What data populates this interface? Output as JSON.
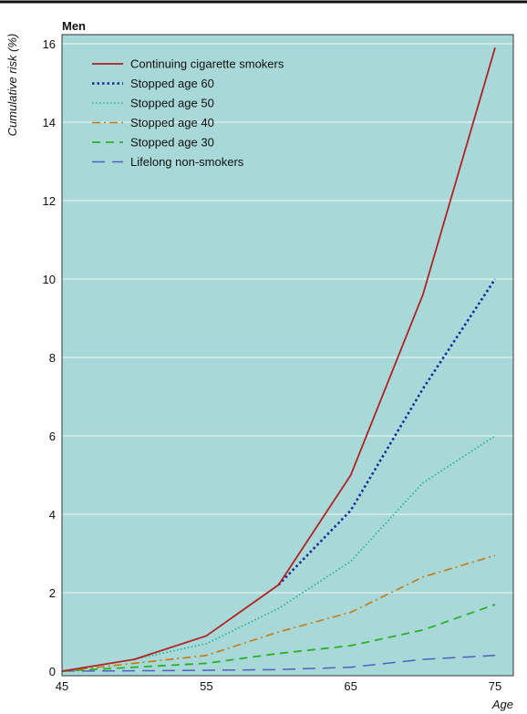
{
  "chart_data": {
    "type": "line",
    "title": "Men",
    "xlabel": "Age",
    "ylabel": "Cumulative risk (%)",
    "xlim": [
      45,
      75
    ],
    "ylim": [
      0,
      16
    ],
    "x_ticks": [
      45,
      55,
      65,
      75
    ],
    "y_ticks": [
      0,
      2,
      4,
      6,
      8,
      10,
      12,
      14,
      16
    ],
    "grid": "horizontal",
    "legend_position": "top-left",
    "colors": {
      "background": "#a8d8d8",
      "border": "#333333",
      "grid": "#e4f2f2"
    },
    "series": [
      {
        "name": "Continuing cigarette smokers",
        "color": "#b22222",
        "dash": "solid",
        "x": [
          45,
          50,
          55,
          60,
          65,
          70,
          75
        ],
        "y": [
          0,
          0.3,
          0.9,
          2.2,
          5.0,
          9.6,
          15.9
        ]
      },
      {
        "name": "Stopped age 60",
        "color": "#1a2a9a",
        "dash": "dotted-heavy",
        "x": [
          60,
          65,
          70,
          75
        ],
        "y": [
          2.2,
          4.1,
          7.2,
          10.0
        ]
      },
      {
        "name": "Stopped age 50",
        "color": "#20b090",
        "dash": "dotted",
        "x": [
          50,
          55,
          60,
          65,
          70,
          75
        ],
        "y": [
          0.3,
          0.7,
          1.6,
          2.8,
          4.8,
          6.0
        ]
      },
      {
        "name": "Stopped age 40",
        "color": "#c87a10",
        "dash": "dashdot",
        "x": [
          45,
          50,
          55,
          60,
          65,
          70,
          75
        ],
        "y": [
          0,
          0.2,
          0.4,
          1.0,
          1.5,
          2.4,
          2.95
        ]
      },
      {
        "name": "Stopped age 30",
        "color": "#2ab02a",
        "dash": "dashed",
        "x": [
          45,
          50,
          55,
          60,
          65,
          70,
          75
        ],
        "y": [
          0,
          0.1,
          0.2,
          0.45,
          0.65,
          1.05,
          1.7
        ]
      },
      {
        "name": "Lifelong non-smokers",
        "color": "#5060c0",
        "dash": "longdash",
        "x": [
          45,
          50,
          55,
          60,
          65,
          70,
          75
        ],
        "y": [
          0,
          0.01,
          0.02,
          0.04,
          0.1,
          0.3,
          0.4
        ]
      }
    ]
  }
}
